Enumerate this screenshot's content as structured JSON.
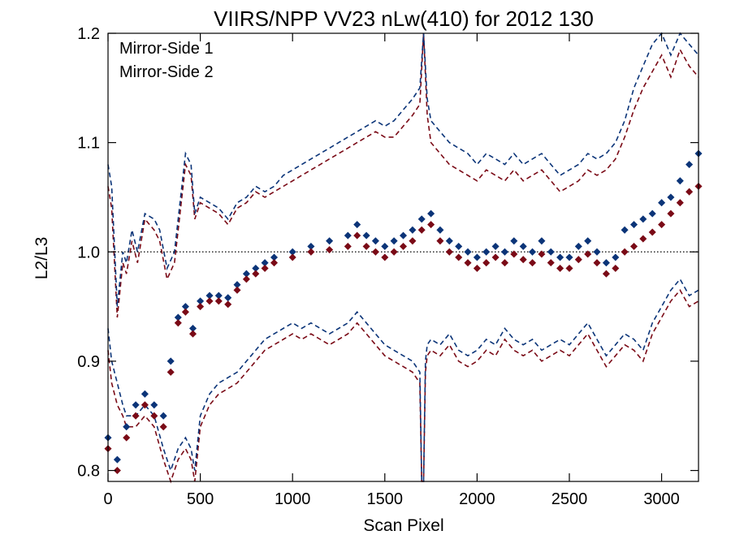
{
  "chart_data": {
    "type": "scatter",
    "title": "VIIRS/NPP VV23 nLw(410) for 2012 130",
    "xlabel": "Scan Pixel",
    "ylabel": "L2/L3",
    "xlim": [
      0,
      3200
    ],
    "ylim": [
      0.79,
      1.2
    ],
    "xticks": [
      0,
      500,
      1000,
      1500,
      2000,
      2500,
      3000
    ],
    "yticks": [
      0.8,
      0.9,
      1.0,
      1.1,
      1.2
    ],
    "xtick_labels": [
      "0",
      "500",
      "1000",
      "1500",
      "2000",
      "2500",
      "3000"
    ],
    "ytick_labels": [
      "0.8",
      "0.9",
      "1.0",
      "1.1",
      "1.2"
    ],
    "reference_line": 1.0,
    "legend_position": "top-left",
    "series": [
      {
        "name": "Mirror-Side 1",
        "color": "#0b3478",
        "x": [
          0,
          50,
          100,
          150,
          200,
          250,
          300,
          340,
          380,
          420,
          460,
          500,
          550,
          600,
          650,
          700,
          750,
          800,
          850,
          900,
          1000,
          1100,
          1200,
          1300,
          1350,
          1400,
          1450,
          1500,
          1550,
          1600,
          1650,
          1700,
          1750,
          1800,
          1850,
          1900,
          1950,
          2000,
          2050,
          2100,
          2150,
          2200,
          2250,
          2300,
          2350,
          2400,
          2450,
          2500,
          2550,
          2600,
          2650,
          2700,
          2750,
          2800,
          2850,
          2900,
          2950,
          3000,
          3050,
          3100,
          3150,
          3200
        ],
        "values": [
          0.83,
          0.81,
          0.84,
          0.86,
          0.87,
          0.86,
          0.85,
          0.9,
          0.94,
          0.95,
          0.93,
          0.955,
          0.96,
          0.96,
          0.958,
          0.97,
          0.98,
          0.985,
          0.99,
          0.995,
          1.0,
          1.005,
          1.01,
          1.015,
          1.025,
          1.015,
          1.01,
          1.005,
          1.01,
          1.015,
          1.02,
          1.03,
          1.035,
          1.02,
          1.01,
          1.005,
          1.0,
          0.995,
          1.0,
          1.005,
          1.0,
          1.01,
          1.005,
          1.0,
          1.01,
          1.0,
          0.995,
          0.995,
          1.005,
          1.01,
          1.0,
          0.99,
          0.995,
          1.02,
          1.025,
          1.03,
          1.035,
          1.045,
          1.05,
          1.065,
          1.08,
          1.09
        ]
      },
      {
        "name": "Mirror-Side 2",
        "color": "#7a0a16",
        "x": [
          0,
          50,
          100,
          150,
          200,
          250,
          300,
          340,
          380,
          420,
          460,
          500,
          550,
          600,
          650,
          700,
          750,
          800,
          850,
          900,
          1000,
          1100,
          1200,
          1300,
          1350,
          1400,
          1450,
          1500,
          1550,
          1600,
          1650,
          1700,
          1750,
          1800,
          1850,
          1900,
          1950,
          2000,
          2050,
          2100,
          2150,
          2200,
          2250,
          2300,
          2350,
          2400,
          2450,
          2500,
          2550,
          2600,
          2650,
          2700,
          2750,
          2800,
          2850,
          2900,
          2950,
          3000,
          3050,
          3100,
          3150,
          3200
        ],
        "values": [
          0.82,
          0.8,
          0.83,
          0.85,
          0.86,
          0.85,
          0.84,
          0.89,
          0.935,
          0.945,
          0.925,
          0.95,
          0.955,
          0.955,
          0.952,
          0.965,
          0.975,
          0.98,
          0.985,
          0.99,
          0.995,
          1.0,
          1.002,
          1.005,
          1.015,
          1.005,
          1.0,
          0.995,
          1.0,
          1.005,
          1.01,
          1.02,
          1.025,
          1.01,
          1.0,
          0.995,
          0.99,
          0.985,
          0.99,
          0.995,
          0.99,
          0.998,
          0.993,
          0.99,
          0.998,
          0.99,
          0.985,
          0.985,
          0.993,
          0.998,
          0.99,
          0.98,
          0.985,
          1.0,
          1.005,
          1.012,
          1.018,
          1.025,
          1.035,
          1.045,
          1.055,
          1.06
        ]
      }
    ],
    "bounds": {
      "upper_ms1": {
        "x": [
          0,
          20,
          50,
          80,
          100,
          130,
          160,
          200,
          250,
          280,
          320,
          360,
          400,
          420,
          450,
          470,
          500,
          550,
          600,
          650,
          700,
          750,
          800,
          850,
          900,
          950,
          1000,
          1050,
          1100,
          1150,
          1200,
          1250,
          1300,
          1350,
          1400,
          1450,
          1500,
          1550,
          1600,
          1650,
          1690,
          1710,
          1730,
          1750,
          1800,
          1850,
          1900,
          1950,
          2000,
          2050,
          2100,
          2150,
          2200,
          2250,
          2300,
          2350,
          2400,
          2450,
          2500,
          2550,
          2600,
          2650,
          2700,
          2750,
          2800,
          2850,
          2900,
          2950,
          3000,
          3050,
          3100,
          3150,
          3200
        ],
        "values": [
          1.08,
          1.06,
          0.95,
          1.0,
          0.99,
          1.02,
          1.0,
          1.035,
          1.03,
          1.02,
          0.985,
          1.0,
          1.06,
          1.09,
          1.08,
          1.035,
          1.05,
          1.045,
          1.04,
          1.03,
          1.045,
          1.05,
          1.06,
          1.055,
          1.06,
          1.07,
          1.075,
          1.08,
          1.085,
          1.09,
          1.095,
          1.1,
          1.105,
          1.11,
          1.115,
          1.12,
          1.115,
          1.12,
          1.13,
          1.14,
          1.15,
          1.2,
          1.14,
          1.12,
          1.11,
          1.1,
          1.095,
          1.09,
          1.08,
          1.09,
          1.085,
          1.08,
          1.09,
          1.08,
          1.085,
          1.09,
          1.08,
          1.07,
          1.075,
          1.08,
          1.09,
          1.085,
          1.09,
          1.1,
          1.12,
          1.15,
          1.17,
          1.19,
          1.2,
          1.18,
          1.21,
          1.19,
          1.18
        ]
      },
      "upper_ms2": {
        "x": [
          0,
          20,
          50,
          80,
          100,
          130,
          160,
          200,
          250,
          280,
          320,
          360,
          400,
          420,
          450,
          470,
          500,
          550,
          600,
          650,
          700,
          750,
          800,
          850,
          900,
          950,
          1000,
          1050,
          1100,
          1150,
          1200,
          1250,
          1300,
          1350,
          1400,
          1450,
          1500,
          1550,
          1600,
          1650,
          1690,
          1710,
          1730,
          1750,
          1800,
          1850,
          1900,
          1950,
          2000,
          2050,
          2100,
          2150,
          2200,
          2250,
          2300,
          2350,
          2400,
          2450,
          2500,
          2550,
          2600,
          2650,
          2700,
          2750,
          2800,
          2850,
          2900,
          2950,
          3000,
          3050,
          3100,
          3150,
          3200
        ],
        "values": [
          1.06,
          1.04,
          0.94,
          0.99,
          0.98,
          1.01,
          0.99,
          1.03,
          1.02,
          1.01,
          0.975,
          0.99,
          1.05,
          1.08,
          1.07,
          1.03,
          1.045,
          1.04,
          1.035,
          1.025,
          1.04,
          1.045,
          1.055,
          1.05,
          1.055,
          1.06,
          1.065,
          1.07,
          1.075,
          1.08,
          1.085,
          1.09,
          1.095,
          1.1,
          1.105,
          1.11,
          1.105,
          1.105,
          1.115,
          1.125,
          1.135,
          1.2,
          1.125,
          1.1,
          1.09,
          1.08,
          1.075,
          1.07,
          1.065,
          1.075,
          1.07,
          1.065,
          1.075,
          1.065,
          1.07,
          1.075,
          1.065,
          1.055,
          1.06,
          1.065,
          1.075,
          1.07,
          1.075,
          1.085,
          1.105,
          1.13,
          1.15,
          1.165,
          1.18,
          1.16,
          1.185,
          1.17,
          1.16
        ]
      },
      "lower_ms1": {
        "x": [
          0,
          20,
          50,
          80,
          100,
          150,
          200,
          250,
          300,
          340,
          380,
          420,
          450,
          470,
          500,
          550,
          600,
          650,
          700,
          750,
          800,
          850,
          900,
          950,
          1000,
          1050,
          1100,
          1150,
          1200,
          1250,
          1300,
          1350,
          1400,
          1450,
          1500,
          1550,
          1600,
          1650,
          1690,
          1700,
          1710,
          1720,
          1730,
          1750,
          1800,
          1850,
          1900,
          1950,
          2000,
          2050,
          2100,
          2150,
          2200,
          2250,
          2300,
          2350,
          2400,
          2450,
          2500,
          2550,
          2600,
          2650,
          2700,
          2750,
          2800,
          2850,
          2900,
          2950,
          3000,
          3050,
          3100,
          3150,
          3200
        ],
        "values": [
          0.93,
          0.9,
          0.88,
          0.86,
          0.85,
          0.85,
          0.86,
          0.85,
          0.82,
          0.8,
          0.82,
          0.83,
          0.82,
          0.8,
          0.85,
          0.87,
          0.88,
          0.885,
          0.89,
          0.9,
          0.91,
          0.92,
          0.925,
          0.93,
          0.935,
          0.93,
          0.935,
          0.93,
          0.925,
          0.93,
          0.935,
          0.945,
          0.935,
          0.925,
          0.915,
          0.91,
          0.905,
          0.9,
          0.89,
          0.79,
          0.79,
          0.9,
          0.915,
          0.92,
          0.915,
          0.925,
          0.91,
          0.905,
          0.91,
          0.92,
          0.915,
          0.93,
          0.92,
          0.915,
          0.92,
          0.91,
          0.915,
          0.92,
          0.915,
          0.925,
          0.935,
          0.92,
          0.905,
          0.915,
          0.925,
          0.92,
          0.91,
          0.935,
          0.95,
          0.965,
          0.975,
          0.96,
          0.965
        ]
      },
      "lower_ms2": {
        "x": [
          0,
          20,
          50,
          80,
          100,
          150,
          200,
          250,
          300,
          340,
          380,
          420,
          450,
          470,
          500,
          550,
          600,
          650,
          700,
          750,
          800,
          850,
          900,
          950,
          1000,
          1050,
          1100,
          1150,
          1200,
          1250,
          1300,
          1350,
          1400,
          1450,
          1500,
          1550,
          1600,
          1650,
          1690,
          1700,
          1710,
          1720,
          1730,
          1750,
          1800,
          1850,
          1900,
          1950,
          2000,
          2050,
          2100,
          2150,
          2200,
          2250,
          2300,
          2350,
          2400,
          2450,
          2500,
          2550,
          2600,
          2650,
          2700,
          2750,
          2800,
          2850,
          2900,
          2950,
          3000,
          3050,
          3100,
          3150,
          3200
        ],
        "values": [
          0.91,
          0.88,
          0.86,
          0.85,
          0.84,
          0.84,
          0.85,
          0.84,
          0.81,
          0.79,
          0.81,
          0.82,
          0.81,
          0.79,
          0.84,
          0.86,
          0.87,
          0.875,
          0.88,
          0.89,
          0.9,
          0.91,
          0.915,
          0.92,
          0.925,
          0.92,
          0.925,
          0.92,
          0.915,
          0.92,
          0.925,
          0.935,
          0.925,
          0.915,
          0.905,
          0.9,
          0.895,
          0.89,
          0.88,
          0.79,
          0.79,
          0.89,
          0.905,
          0.91,
          0.905,
          0.915,
          0.9,
          0.895,
          0.9,
          0.91,
          0.905,
          0.92,
          0.91,
          0.905,
          0.91,
          0.9,
          0.905,
          0.91,
          0.905,
          0.915,
          0.925,
          0.91,
          0.895,
          0.905,
          0.915,
          0.91,
          0.9,
          0.925,
          0.94,
          0.955,
          0.965,
          0.95,
          0.955
        ]
      }
    }
  }
}
